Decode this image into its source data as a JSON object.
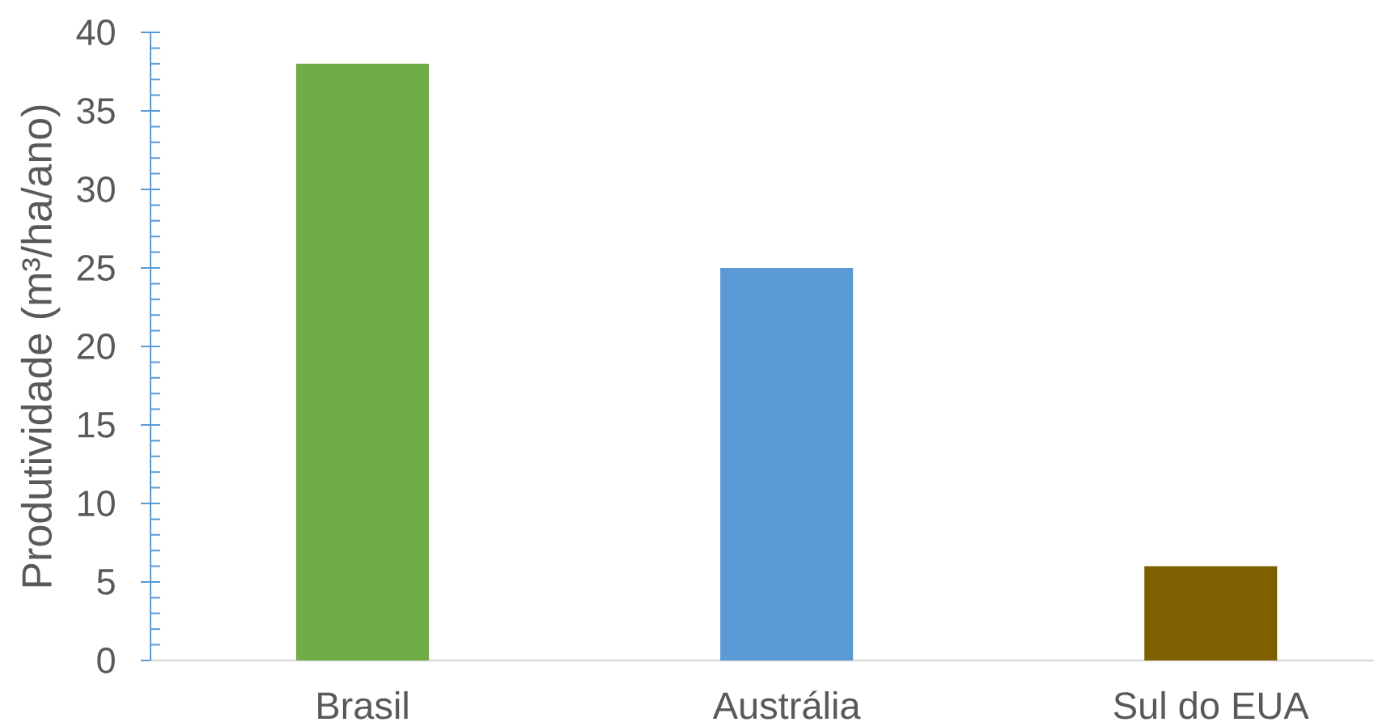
{
  "chart_data": {
    "type": "bar",
    "ylabel": "Produtividade (m³/ha/ano)",
    "categories": [
      "Brasil",
      "Austrália",
      "Sul do EUA"
    ],
    "values": [
      38,
      25,
      6
    ],
    "colors": [
      "#70ad47",
      "#5b9bd5",
      "#7f6000"
    ],
    "ylim": [
      0,
      40
    ],
    "yticks": [
      0,
      5,
      10,
      15,
      20,
      25,
      30,
      35,
      40
    ]
  }
}
